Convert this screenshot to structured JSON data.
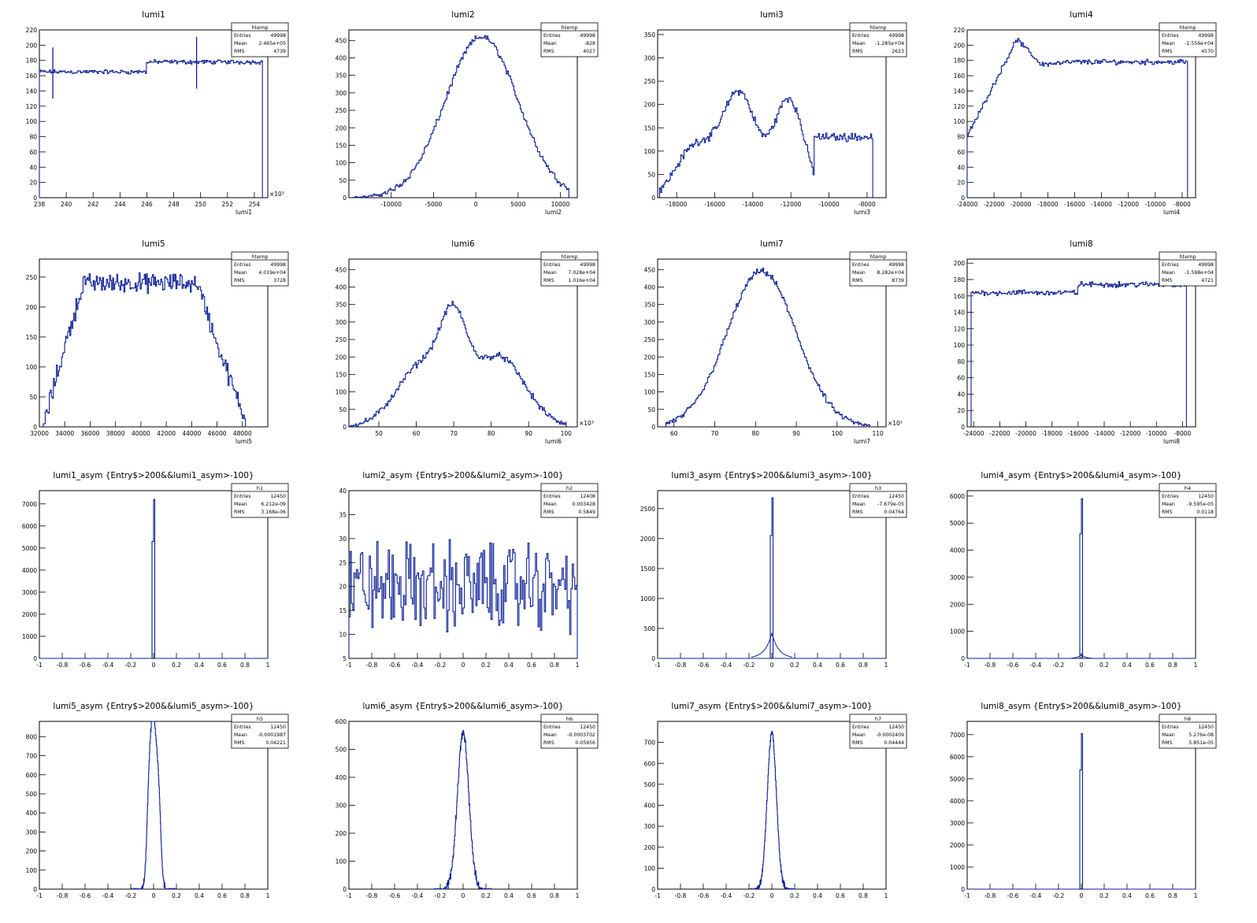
{
  "line_color": "#0c1f96",
  "chart_data": [
    {
      "type": "histogram",
      "title": "lumi1",
      "xlabel": "lumi1",
      "x_exponent": "×10³",
      "xlim": [
        238,
        255
      ],
      "ylim": [
        0,
        220
      ],
      "xticks": [
        238,
        240,
        242,
        244,
        246,
        248,
        250,
        252,
        254
      ],
      "yticks": [
        0,
        20,
        40,
        60,
        80,
        100,
        120,
        140,
        160,
        180,
        200,
        220
      ],
      "stats": {
        "name": "htemp",
        "rows": [
          [
            "Entries",
            "49998"
          ],
          [
            "Mean",
            "2.465e+05"
          ],
          [
            "RMS",
            "4739"
          ]
        ]
      },
      "shape": {
        "kind": "plateau",
        "x0": 238,
        "x1": 254.6,
        "segments": [
          [
            238,
            246,
            165
          ],
          [
            246,
            254.6,
            178
          ]
        ],
        "noise": 2.5,
        "spikes": [
          [
            239,
            130,
            197
          ],
          [
            249.7,
            143,
            211
          ]
        ]
      }
    },
    {
      "type": "histogram",
      "title": "lumi2",
      "xlabel": "lumi2",
      "xlim": [
        -15000,
        12000
      ],
      "ylim": [
        0,
        480
      ],
      "xticks": [
        -10000,
        -5000,
        0,
        5000,
        10000
      ],
      "yticks": [
        0,
        50,
        100,
        150,
        200,
        250,
        300,
        350,
        400,
        450
      ],
      "stats": {
        "name": "htemp",
        "rows": [
          [
            "Entries",
            "49998"
          ],
          [
            "Mean",
            "-828"
          ],
          [
            "RMS",
            "4027"
          ]
        ]
      },
      "shape": {
        "kind": "peaks",
        "x0": -14500,
        "x1": 11000,
        "peaks": [
          [
            700,
            460,
            4300
          ]
        ],
        "noise": 8
      }
    },
    {
      "type": "histogram",
      "title": "lumi3",
      "xlabel": "lumi3",
      "xlim": [
        -19000,
        -7000
      ],
      "ylim": [
        0,
        360
      ],
      "xticks": [
        -18000,
        -16000,
        -14000,
        -12000,
        -10000,
        -8000
      ],
      "yticks": [
        0,
        50,
        100,
        150,
        200,
        250,
        300,
        350
      ],
      "stats": {
        "name": "htemp",
        "rows": [
          [
            "Entries",
            "49998"
          ],
          [
            "Mean",
            "-1.285e+04"
          ],
          [
            "RMS",
            "2623"
          ]
        ]
      },
      "shape": {
        "kind": "peaks",
        "x0": -18900,
        "x1": -7700,
        "base": [
          -10800,
          -7700,
          130
        ],
        "peaks": [
          [
            -14700,
            220,
            900
          ],
          [
            -12100,
            210,
            800
          ],
          [
            -17000,
            110,
            1000
          ]
        ],
        "noise": 8,
        "edge": -7700
      }
    },
    {
      "type": "histogram",
      "title": "lumi4",
      "xlabel": "lumi4",
      "xlim": [
        -24000,
        -7000
      ],
      "ylim": [
        0,
        220
      ],
      "xticks": [
        -24000,
        -22000,
        -20000,
        -18000,
        -16000,
        -14000,
        -12000,
        -10000,
        -8000
      ],
      "yticks": [
        0,
        20,
        40,
        60,
        80,
        100,
        120,
        140,
        160,
        180,
        200,
        220
      ],
      "stats": {
        "name": "htemp",
        "rows": [
          [
            "Entries",
            "49998"
          ],
          [
            "Mean",
            "-1.556e+04"
          ],
          [
            "RMS",
            "4570"
          ]
        ]
      },
      "shape": {
        "kind": "ramp",
        "x0": -24000,
        "x1": -7600,
        "points": [
          [
            -24000,
            80
          ],
          [
            -20300,
            208
          ],
          [
            -18500,
            175
          ],
          [
            -16000,
            178
          ],
          [
            -7800,
            178
          ]
        ],
        "noise": 3,
        "edge": -7600
      }
    },
    {
      "type": "histogram",
      "title": "lumi5",
      "xlabel": "lumi5",
      "xlim": [
        32000,
        50000
      ],
      "ylim": [
        0,
        280
      ],
      "xticks": [
        32000,
        34000,
        36000,
        38000,
        40000,
        42000,
        44000,
        46000,
        48000
      ],
      "yticks": [
        0,
        50,
        100,
        150,
        200,
        250
      ],
      "stats": {
        "name": "htemp",
        "rows": [
          [
            "Entries",
            "49998"
          ],
          [
            "Mean",
            "4.019e+04"
          ],
          [
            "RMS",
            "3728"
          ]
        ]
      },
      "shape": {
        "kind": "ramp",
        "x0": 32300,
        "x1": 48400,
        "points": [
          [
            32300,
            0
          ],
          [
            34200,
            150
          ],
          [
            35500,
            240
          ],
          [
            44500,
            240
          ],
          [
            45800,
            150
          ],
          [
            48400,
            0
          ]
        ],
        "noise": 14
      }
    },
    {
      "type": "histogram",
      "title": "lumi6",
      "xlabel": "lumi6",
      "x_exponent": "×10³",
      "xlim": [
        42,
        103
      ],
      "ylim": [
        0,
        480
      ],
      "xticks": [
        50,
        60,
        70,
        80,
        90,
        100
      ],
      "yticks": [
        0,
        50,
        100,
        150,
        200,
        250,
        300,
        350,
        400,
        450
      ],
      "stats": {
        "name": "htemp",
        "rows": [
          [
            "Entries",
            "49998"
          ],
          [
            "Mean",
            "7.028e+04"
          ],
          [
            "RMS",
            "1.016e+04"
          ]
        ]
      },
      "shape": {
        "kind": "peaks",
        "x0": 42,
        "x1": 100,
        "peaks": [
          [
            70,
            210,
            3.5
          ],
          [
            62,
            180,
            7
          ],
          [
            82,
            200,
            7
          ]
        ],
        "noise": 8
      }
    },
    {
      "type": "histogram",
      "title": "lumi7",
      "xlabel": "lumi7",
      "x_exponent": "×10³",
      "xlim": [
        56,
        112
      ],
      "ylim": [
        0,
        480
      ],
      "xticks": [
        60,
        70,
        80,
        90,
        100,
        110
      ],
      "yticks": [
        0,
        50,
        100,
        150,
        200,
        250,
        300,
        350,
        400,
        450
      ],
      "stats": {
        "name": "htemp",
        "rows": [
          [
            "Entries",
            "49998"
          ],
          [
            "Mean",
            "8.282e+04"
          ],
          [
            "RMS",
            "8739"
          ]
        ]
      },
      "shape": {
        "kind": "peaks",
        "x0": 58,
        "x1": 108,
        "peaks": [
          [
            81.5,
            445,
            8.5
          ]
        ],
        "noise": 8
      }
    },
    {
      "type": "histogram",
      "title": "lumi8",
      "xlabel": "lumi8",
      "xlim": [
        -24500,
        -7000
      ],
      "ylim": [
        0,
        205
      ],
      "xticks": [
        -24000,
        -22000,
        -20000,
        -18000,
        -16000,
        -14000,
        -12000,
        -10000,
        -8000
      ],
      "yticks": [
        0,
        20,
        40,
        60,
        80,
        100,
        120,
        140,
        160,
        180,
        200
      ],
      "stats": {
        "name": "htemp",
        "rows": [
          [
            "Entries",
            "49998"
          ],
          [
            "Mean",
            "-1.598e+04"
          ],
          [
            "RMS",
            "4721"
          ]
        ]
      },
      "shape": {
        "kind": "plateau",
        "x0": -24200,
        "x1": -7700,
        "segments": [
          [
            -24200,
            -16000,
            164
          ],
          [
            -16000,
            -7700,
            174
          ]
        ],
        "noise": 3,
        "edge": -7700
      }
    },
    {
      "type": "histogram",
      "title": "lumi1_asym {Entry$>200&&lumi1_asym>-100}",
      "xlim": [
        -1,
        1
      ],
      "ylim": [
        0,
        7600
      ],
      "xticks": [
        -1,
        -0.8,
        -0.6,
        -0.4,
        -0.2,
        0,
        0.2,
        0.4,
        0.6,
        0.8,
        1
      ],
      "yticks": [
        0,
        1000,
        2000,
        3000,
        4000,
        5000,
        6000,
        7000
      ],
      "stats": {
        "name": "h1",
        "rows": [
          [
            "Entries",
            "12450"
          ],
          [
            "Mean",
            "6.212e-09"
          ],
          [
            "RMS",
            "3.168e-06"
          ]
        ]
      },
      "shape": {
        "kind": "spike",
        "x": 0,
        "value": 7200,
        "second": 5300
      }
    },
    {
      "type": "histogram",
      "title": "lumi2_asym {Entry$>200&&lumi2_asym>-100}",
      "xlim": [
        -1,
        1
      ],
      "ylim": [
        5,
        40
      ],
      "xticks": [
        -1,
        -0.8,
        -0.6,
        -0.4,
        -0.2,
        0,
        0.2,
        0.4,
        0.6,
        0.8,
        1
      ],
      "yticks": [
        5,
        10,
        15,
        20,
        25,
        30,
        35,
        40
      ],
      "stats": {
        "name": "h2",
        "rows": [
          [
            "Entries",
            "12408"
          ],
          [
            "Mean",
            "0.003428"
          ],
          [
            "RMS",
            "0.5849"
          ]
        ]
      },
      "shape": {
        "kind": "flatnoise",
        "x0": -1,
        "x1": 1,
        "level": 20,
        "noise": 7
      }
    },
    {
      "type": "histogram",
      "title": "lumi3_asym {Entry$>200&&lumi3_asym>-100}",
      "xlim": [
        -1,
        1
      ],
      "ylim": [
        0,
        2800
      ],
      "xticks": [
        -1,
        -0.8,
        -0.6,
        -0.4,
        -0.2,
        0,
        0.2,
        0.4,
        0.6,
        0.8,
        1
      ],
      "yticks": [
        0,
        500,
        1000,
        1500,
        2000,
        2500
      ],
      "stats": {
        "name": "h3",
        "rows": [
          [
            "Entries",
            "12450"
          ],
          [
            "Mean",
            "-7.679e-05"
          ],
          [
            "RMS",
            "0.04764"
          ]
        ]
      },
      "shape": {
        "kind": "spike",
        "x": 0,
        "value": 2680,
        "second": 2050,
        "base": [
          420,
          0.06
        ]
      }
    },
    {
      "type": "histogram",
      "title": "lumi4_asym {Entry$>200&&lumi4_asym>-100}",
      "xlim": [
        -1,
        1
      ],
      "ylim": [
        0,
        6200
      ],
      "xticks": [
        -1,
        -0.8,
        -0.6,
        -0.4,
        -0.2,
        0,
        0.2,
        0.4,
        0.6,
        0.8,
        1
      ],
      "yticks": [
        0,
        1000,
        2000,
        3000,
        4000,
        5000,
        6000
      ],
      "stats": {
        "name": "h4",
        "rows": [
          [
            "Entries",
            "12450"
          ],
          [
            "Mean",
            "-9.595e-05"
          ],
          [
            "RMS",
            "0.0118"
          ]
        ]
      },
      "shape": {
        "kind": "spike",
        "x": 0,
        "value": 5900,
        "second": 4600,
        "base": [
          150,
          0.03
        ]
      }
    },
    {
      "type": "histogram",
      "title": "lumi5_asym {Entry$>200&&lumi5_asym>-100}",
      "xlim": [
        -1,
        1
      ],
      "ylim": [
        0,
        880
      ],
      "xticks": [
        -1,
        -0.8,
        -0.6,
        -0.4,
        -0.2,
        0,
        0.2,
        0.4,
        0.6,
        0.8,
        1
      ],
      "yticks": [
        0,
        100,
        200,
        300,
        400,
        500,
        600,
        700,
        800
      ],
      "stats": {
        "name": "h5",
        "rows": [
          [
            "Entries",
            "12450"
          ],
          [
            "Mean",
            "-0.0001987"
          ],
          [
            "RMS",
            "0.04221"
          ]
        ]
      },
      "shape": {
        "kind": "peaks",
        "x0": -0.2,
        "x1": 0.2,
        "peaks": [
          [
            0,
            830,
            0.025
          ],
          [
            -0.04,
            420,
            0.02
          ],
          [
            0.045,
            420,
            0.02
          ]
        ],
        "noise": 18
      }
    },
    {
      "type": "histogram",
      "title": "lumi6_asym {Entry$>200&&lumi6_asym>-100}",
      "xlim": [
        -1,
        1
      ],
      "ylim": [
        0,
        600
      ],
      "xticks": [
        -1,
        -0.8,
        -0.6,
        -0.4,
        -0.2,
        0,
        0.2,
        0.4,
        0.6,
        0.8,
        1
      ],
      "yticks": [
        0,
        100,
        200,
        300,
        400,
        500,
        600
      ],
      "stats": {
        "name": "h6",
        "rows": [
          [
            "Entries",
            "12450"
          ],
          [
            "Mean",
            "-0.0003702"
          ],
          [
            "RMS",
            "0.05956"
          ]
        ]
      },
      "shape": {
        "kind": "peaks",
        "x0": -0.25,
        "x1": 0.25,
        "peaks": [
          [
            0,
            560,
            0.05
          ]
        ],
        "noise": 14
      }
    },
    {
      "type": "histogram",
      "title": "lumi7_asym {Entry$>200&&lumi7_asym>-100}",
      "xlim": [
        -1,
        1
      ],
      "ylim": [
        0,
        800
      ],
      "xticks": [
        -1,
        -0.8,
        -0.6,
        -0.4,
        -0.2,
        0,
        0.2,
        0.4,
        0.6,
        0.8,
        1
      ],
      "yticks": [
        0,
        100,
        200,
        300,
        400,
        500,
        600,
        700
      ],
      "stats": {
        "name": "h7",
        "rows": [
          [
            "Entries",
            "12450"
          ],
          [
            "Mean",
            "-0.0002409"
          ],
          [
            "RMS",
            "0.04444"
          ]
        ]
      },
      "shape": {
        "kind": "peaks",
        "x0": -0.2,
        "x1": 0.2,
        "peaks": [
          [
            0,
            745,
            0.04
          ]
        ],
        "noise": 14
      }
    },
    {
      "type": "histogram",
      "title": "lumi8_asym {Entry$>200&&lumi8_asym>-100}",
      "xlim": [
        -1,
        1
      ],
      "ylim": [
        0,
        7600
      ],
      "xticks": [
        -1,
        -0.8,
        -0.6,
        -0.4,
        -0.2,
        0,
        0.2,
        0.4,
        0.6,
        0.8,
        1
      ],
      "yticks": [
        0,
        1000,
        2000,
        3000,
        4000,
        5000,
        6000,
        7000
      ],
      "stats": {
        "name": "h8",
        "rows": [
          [
            "Entries",
            "12450"
          ],
          [
            "Mean",
            "5.276e-08"
          ],
          [
            "RMS",
            "5.851e-05"
          ]
        ]
      },
      "shape": {
        "kind": "spike",
        "x": 0,
        "value": 7050,
        "second": 5400
      }
    }
  ]
}
